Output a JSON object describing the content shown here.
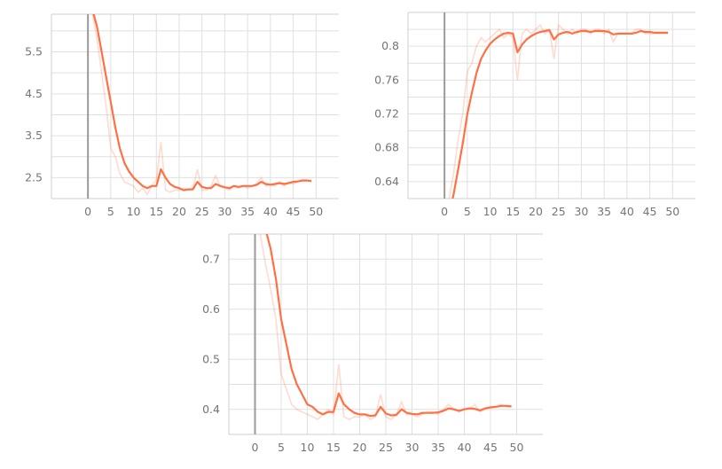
{
  "page": {
    "background": "#ffffff"
  },
  "chart_data": [
    {
      "type": "line",
      "title": "",
      "xlabel": "",
      "ylabel": "",
      "xlim": [
        -8,
        55
      ],
      "ylim": [
        2.0,
        6.4
      ],
      "xticks": [
        0,
        5,
        10,
        15,
        20,
        25,
        30,
        35,
        40,
        45,
        50
      ],
      "yticks": [
        2.5,
        3.5,
        4.5,
        5.5
      ],
      "ytick_labels": [
        "2.5",
        "3.5",
        "4.5",
        "5.5"
      ],
      "grid": true,
      "accent_color": "#ff7043",
      "series": [
        {
          "style": "raw",
          "x": [
            1,
            2,
            3,
            4,
            5,
            6,
            7,
            8,
            9,
            10,
            11,
            12,
            13,
            14,
            15,
            16,
            17,
            18,
            19,
            20,
            21,
            22,
            23,
            24,
            25,
            26,
            27,
            28,
            29,
            30,
            31,
            32,
            33,
            34,
            35,
            36,
            37,
            38,
            39,
            40,
            41,
            42,
            43,
            44,
            45,
            46,
            47,
            48,
            49
          ],
          "values": [
            6.4,
            5.8,
            5.0,
            4.2,
            3.2,
            3.0,
            2.6,
            2.4,
            2.35,
            2.3,
            2.15,
            2.25,
            2.1,
            2.3,
            2.45,
            3.35,
            2.2,
            2.15,
            2.2,
            2.2,
            2.25,
            2.2,
            2.25,
            2.7,
            2.2,
            2.2,
            2.3,
            2.55,
            2.3,
            2.25,
            2.2,
            2.3,
            2.25,
            2.3,
            2.25,
            2.3,
            2.35,
            2.5,
            2.3,
            2.35,
            2.3,
            2.4,
            2.3,
            2.4,
            2.35,
            2.4,
            2.45,
            2.45,
            2.4
          ]
        },
        {
          "style": "smooth",
          "x": [
            1,
            2,
            3,
            4,
            5,
            6,
            7,
            8,
            9,
            10,
            11,
            12,
            13,
            14,
            15,
            16,
            17,
            18,
            19,
            20,
            21,
            22,
            23,
            24,
            25,
            26,
            27,
            28,
            29,
            30,
            31,
            32,
            33,
            34,
            35,
            36,
            37,
            38,
            39,
            40,
            41,
            42,
            43,
            44,
            45,
            46,
            47,
            48,
            49
          ],
          "values": [
            6.5,
            6.1,
            5.5,
            4.9,
            4.3,
            3.7,
            3.2,
            2.85,
            2.65,
            2.5,
            2.4,
            2.3,
            2.25,
            2.3,
            2.3,
            2.7,
            2.5,
            2.35,
            2.28,
            2.25,
            2.2,
            2.22,
            2.22,
            2.4,
            2.28,
            2.25,
            2.25,
            2.35,
            2.3,
            2.27,
            2.25,
            2.3,
            2.28,
            2.3,
            2.3,
            2.3,
            2.33,
            2.4,
            2.35,
            2.33,
            2.35,
            2.37,
            2.35,
            2.37,
            2.4,
            2.41,
            2.43,
            2.43,
            2.42
          ]
        }
      ]
    },
    {
      "type": "line",
      "title": "",
      "xlabel": "",
      "ylabel": "",
      "xlim": [
        -8,
        55
      ],
      "ylim": [
        0.62,
        0.84
      ],
      "xticks": [
        0,
        5,
        10,
        15,
        20,
        25,
        30,
        35,
        40,
        45,
        50
      ],
      "yticks": [
        0.64,
        0.68,
        0.72,
        0.76,
        0.8
      ],
      "ytick_labels": [
        "0.64",
        "0.68",
        "0.72",
        "0.76",
        "0.8"
      ],
      "grid": true,
      "accent_color": "#ff7043",
      "series": [
        {
          "style": "raw",
          "x": [
            1,
            2,
            3,
            4,
            5,
            6,
            7,
            8,
            9,
            10,
            11,
            12,
            13,
            14,
            15,
            16,
            17,
            18,
            19,
            20,
            21,
            22,
            23,
            24,
            25,
            26,
            27,
            28,
            29,
            30,
            31,
            32,
            33,
            34,
            35,
            36,
            37,
            38,
            39,
            40,
            41,
            42,
            43,
            44,
            45,
            46,
            47,
            48,
            49
          ],
          "values": [
            0.62,
            0.65,
            0.69,
            0.72,
            0.77,
            0.78,
            0.8,
            0.81,
            0.805,
            0.81,
            0.815,
            0.82,
            0.81,
            0.815,
            0.81,
            0.76,
            0.815,
            0.82,
            0.815,
            0.82,
            0.825,
            0.815,
            0.82,
            0.785,
            0.825,
            0.82,
            0.815,
            0.82,
            0.815,
            0.82,
            0.82,
            0.815,
            0.82,
            0.82,
            0.815,
            0.82,
            0.805,
            0.815,
            0.815,
            0.815,
            0.815,
            0.82,
            0.82,
            0.815,
            0.815,
            0.815,
            0.815,
            0.815,
            0.815
          ]
        },
        {
          "style": "smooth",
          "x": [
            1,
            2,
            3,
            4,
            5,
            6,
            7,
            8,
            9,
            10,
            11,
            12,
            13,
            14,
            15,
            16,
            17,
            18,
            19,
            20,
            21,
            22,
            23,
            24,
            25,
            26,
            27,
            28,
            29,
            30,
            31,
            32,
            33,
            34,
            35,
            36,
            37,
            38,
            39,
            40,
            41,
            42,
            43,
            44,
            45,
            46,
            47,
            48,
            49
          ],
          "values": [
            0.6,
            0.625,
            0.655,
            0.685,
            0.72,
            0.745,
            0.768,
            0.785,
            0.795,
            0.803,
            0.808,
            0.812,
            0.815,
            0.816,
            0.815,
            0.793,
            0.802,
            0.808,
            0.812,
            0.815,
            0.817,
            0.818,
            0.819,
            0.808,
            0.814,
            0.816,
            0.817,
            0.815,
            0.817,
            0.818,
            0.818,
            0.817,
            0.818,
            0.818,
            0.818,
            0.817,
            0.814,
            0.815,
            0.815,
            0.815,
            0.815,
            0.816,
            0.818,
            0.817,
            0.817,
            0.816,
            0.816,
            0.816,
            0.816
          ]
        }
      ]
    },
    {
      "type": "line",
      "title": "",
      "xlabel": "",
      "ylabel": "",
      "xlim": [
        -5,
        55
      ],
      "ylim": [
        0.35,
        0.75
      ],
      "xticks": [
        0,
        5,
        10,
        15,
        20,
        25,
        30,
        35,
        40,
        45,
        50
      ],
      "yticks": [
        0.4,
        0.5,
        0.6,
        0.7
      ],
      "ytick_labels": [
        "0.4",
        "0.5",
        "0.6",
        "0.7"
      ],
      "grid": true,
      "accent_color": "#ff7043",
      "series": [
        {
          "style": "raw",
          "x": [
            1,
            2,
            3,
            4,
            5,
            6,
            7,
            8,
            9,
            10,
            11,
            12,
            13,
            14,
            15,
            16,
            17,
            18,
            19,
            20,
            21,
            22,
            23,
            24,
            25,
            26,
            27,
            28,
            29,
            30,
            31,
            32,
            33,
            34,
            35,
            36,
            37,
            38,
            39,
            40,
            41,
            42,
            43,
            44,
            45,
            46,
            47,
            48,
            49
          ],
          "values": [
            0.75,
            0.69,
            0.64,
            0.58,
            0.47,
            0.44,
            0.41,
            0.4,
            0.395,
            0.39,
            0.385,
            0.38,
            0.39,
            0.4,
            0.39,
            0.49,
            0.385,
            0.38,
            0.385,
            0.385,
            0.39,
            0.38,
            0.385,
            0.43,
            0.385,
            0.38,
            0.39,
            0.415,
            0.39,
            0.39,
            0.385,
            0.39,
            0.395,
            0.395,
            0.39,
            0.4,
            0.41,
            0.4,
            0.395,
            0.4,
            0.4,
            0.41,
            0.395,
            0.4,
            0.405,
            0.405,
            0.41,
            0.405,
            0.405
          ]
        },
        {
          "style": "smooth",
          "x": [
            1,
            2,
            3,
            4,
            5,
            6,
            7,
            8,
            9,
            10,
            11,
            12,
            13,
            14,
            15,
            16,
            17,
            18,
            19,
            20,
            21,
            22,
            23,
            24,
            25,
            26,
            27,
            28,
            29,
            30,
            31,
            32,
            33,
            34,
            35,
            36,
            37,
            38,
            39,
            40,
            41,
            42,
            43,
            44,
            45,
            46,
            47,
            48,
            49
          ],
          "values": [
            0.78,
            0.76,
            0.72,
            0.66,
            0.58,
            0.53,
            0.48,
            0.45,
            0.43,
            0.41,
            0.405,
            0.395,
            0.39,
            0.395,
            0.395,
            0.432,
            0.41,
            0.4,
            0.393,
            0.39,
            0.39,
            0.387,
            0.388,
            0.405,
            0.392,
            0.388,
            0.389,
            0.4,
            0.393,
            0.391,
            0.39,
            0.393,
            0.393,
            0.393,
            0.394,
            0.397,
            0.402,
            0.4,
            0.397,
            0.4,
            0.402,
            0.401,
            0.398,
            0.402,
            0.404,
            0.405,
            0.407,
            0.407,
            0.406
          ]
        }
      ]
    }
  ]
}
